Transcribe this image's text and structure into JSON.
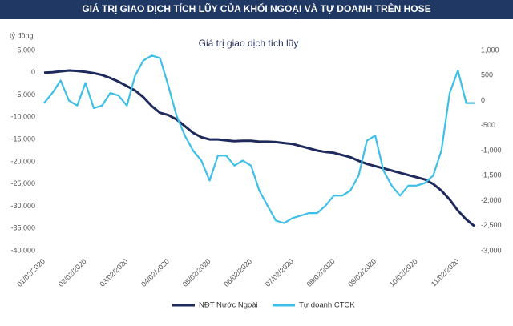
{
  "chart_data": {
    "type": "line",
    "banner": "GIÁ TRỊ GIAO DỊCH TÍCH LŨY CỦA KHỐI NGOẠI VÀ TỰ DOANH TRÊN HOSE",
    "title": "Giá trị giao dịch tích lũy",
    "y_label": "tỷ đồng",
    "categories": [
      "01/02/2020",
      null,
      null,
      null,
      null,
      "02/02/2020",
      null,
      null,
      null,
      null,
      "03/02/2020",
      null,
      null,
      null,
      null,
      "04/02/2020",
      null,
      null,
      null,
      null,
      "05/02/2020",
      null,
      null,
      null,
      null,
      "06/02/2020",
      null,
      null,
      null,
      null,
      "07/02/2020",
      null,
      null,
      null,
      null,
      "08/02/2020",
      null,
      null,
      null,
      null,
      "09/02/2020",
      null,
      null,
      null,
      null,
      "10/02/2020",
      null,
      null,
      null,
      null,
      "11/02/2020",
      null,
      null
    ],
    "series": [
      {
        "name": "NĐT Nước Ngoài",
        "color": "#1f2a5c",
        "axis": "y",
        "values": [
          0,
          100,
          300,
          500,
          400,
          200,
          -100,
          -500,
          -1200,
          -2000,
          -3000,
          -4000,
          -5500,
          -7500,
          -9000,
          -9500,
          -10500,
          -12000,
          -13500,
          -14500,
          -15000,
          -15000,
          -15200,
          -15400,
          -15300,
          -15300,
          -15500,
          -15500,
          -15600,
          -15800,
          -16000,
          -16500,
          -17000,
          -17500,
          -17800,
          -18000,
          -18500,
          -19000,
          -19800,
          -20500,
          -21000,
          -21500,
          -22000,
          -22500,
          -23000,
          -23500,
          -24000,
          -25000,
          -26500,
          -28500,
          -31000,
          -33000,
          -34500
        ]
      },
      {
        "name": "Tự doanh CTCK",
        "color": "#3dbfe8",
        "axis": "y2",
        "values": [
          -50,
          150,
          400,
          0,
          -100,
          350,
          -150,
          -100,
          150,
          100,
          -100,
          500,
          800,
          900,
          850,
          300,
          -300,
          -700,
          -1000,
          -1200,
          -1600,
          -1100,
          -1100,
          -1300,
          -1200,
          -1300,
          -1800,
          -2100,
          -2400,
          -2450,
          -2350,
          -2300,
          -2250,
          -2250,
          -2100,
          -1900,
          -1900,
          -1800,
          -1500,
          -800,
          -700,
          -1400,
          -1700,
          -1900,
          -1700,
          -1700,
          -1650,
          -1500,
          -1000,
          150,
          600,
          -50,
          -50
        ]
      }
    ],
    "ylim": [
      -40000,
      5000
    ],
    "yticks": [
      {
        "value": 5000,
        "label": "5,000"
      },
      0,
      {
        "value": -5000,
        "label": "-5,000"
      },
      {
        "value": -10000,
        "label": "-10,000"
      },
      {
        "value": -15000,
        "label": "-15,000"
      },
      {
        "value": -20000,
        "label": "-20,000"
      },
      {
        "value": -25000,
        "label": "-25,000"
      },
      {
        "value": -30000,
        "label": "-30,000"
      },
      {
        "value": -35000,
        "label": "-35,000"
      },
      {
        "value": -40000,
        "label": "-40,000"
      }
    ],
    "y2lim": [
      -3000,
      1000
    ],
    "y2ticks": [
      {
        "value": 1000,
        "label": "1,000"
      },
      500,
      0,
      -500,
      {
        "value": -1000,
        "label": "-1,000"
      },
      {
        "value": -1500,
        "label": "-1,500"
      },
      {
        "value": -2000,
        "label": "-2,000"
      },
      {
        "value": -2500,
        "label": "-2,500"
      },
      {
        "value": -3000,
        "label": "-3,000"
      }
    ]
  }
}
